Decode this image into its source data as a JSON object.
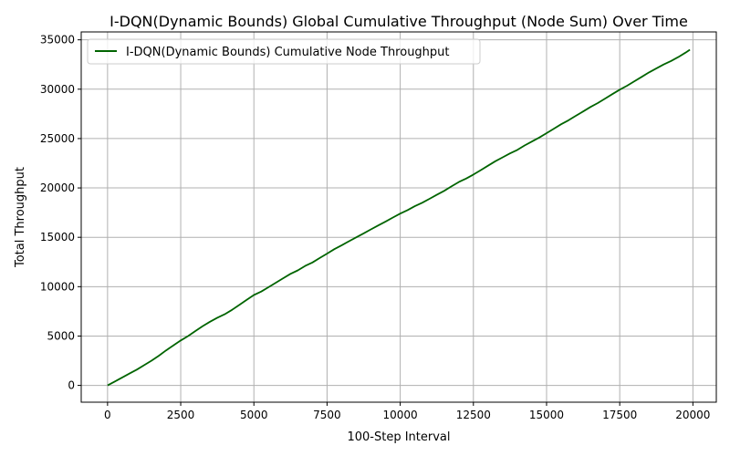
{
  "chart_data": {
    "type": "line",
    "title": "I-DQN(Dynamic Bounds) Global Cumulative Throughput (Node Sum) Over Time",
    "xlabel": "100-Step Interval",
    "ylabel": "Total Throughput",
    "xlim": [
      -900,
      20800
    ],
    "ylim": [
      -1700,
      35800
    ],
    "xticks": [
      0,
      2500,
      5000,
      7500,
      10000,
      12500,
      15000,
      17500,
      20000
    ],
    "xtick_labels": [
      "0",
      "2500",
      "5000",
      "7500",
      "10000",
      "12500",
      "15000",
      "17500",
      "20000"
    ],
    "yticks": [
      0,
      5000,
      10000,
      15000,
      20000,
      25000,
      30000,
      35000
    ],
    "ytick_labels": [
      "0",
      "5000",
      "10000",
      "15000",
      "20000",
      "25000",
      "30000",
      "35000"
    ],
    "grid": true,
    "legend_position": "top-left",
    "series": [
      {
        "name": "I-DQN(Dynamic Bounds) Cumulative Node Throughput",
        "color": "#006400",
        "x": [
          0,
          250,
          500,
          750,
          1000,
          1250,
          1500,
          1750,
          2000,
          2250,
          2500,
          2750,
          3000,
          3250,
          3500,
          3750,
          4000,
          4250,
          4500,
          4750,
          5000,
          5250,
          5500,
          5750,
          6000,
          6250,
          6500,
          6750,
          7000,
          7250,
          7500,
          7750,
          8000,
          8250,
          8500,
          8750,
          9000,
          9250,
          9500,
          9750,
          10000,
          10250,
          10500,
          10750,
          11000,
          11250,
          11500,
          11750,
          12000,
          12250,
          12500,
          12750,
          13000,
          13250,
          13500,
          13750,
          14000,
          14250,
          14500,
          14750,
          15000,
          15250,
          15500,
          15750,
          16000,
          16250,
          16500,
          16750,
          17000,
          17250,
          17500,
          17750,
          18000,
          18250,
          18500,
          18750,
          19000,
          19250,
          19500,
          19750,
          19900
        ],
        "values": [
          0,
          400,
          800,
          1200,
          1600,
          2050,
          2500,
          3000,
          3550,
          4050,
          4550,
          5000,
          5500,
          6000,
          6450,
          6850,
          7200,
          7650,
          8150,
          8650,
          9150,
          9500,
          9950,
          10400,
          10850,
          11300,
          11650,
          12100,
          12450,
          12900,
          13350,
          13800,
          14200,
          14600,
          15000,
          15400,
          15800,
          16200,
          16600,
          17000,
          17400,
          17750,
          18150,
          18500,
          18900,
          19300,
          19700,
          20150,
          20600,
          20950,
          21350,
          21800,
          22250,
          22700,
          23100,
          23500,
          23850,
          24300,
          24700,
          25100,
          25550,
          26000,
          26450,
          26850,
          27300,
          27750,
          28200,
          28600,
          29050,
          29500,
          29950,
          30350,
          30800,
          31250,
          31700,
          32100,
          32500,
          32850,
          33250,
          33700,
          34000
        ]
      }
    ]
  }
}
